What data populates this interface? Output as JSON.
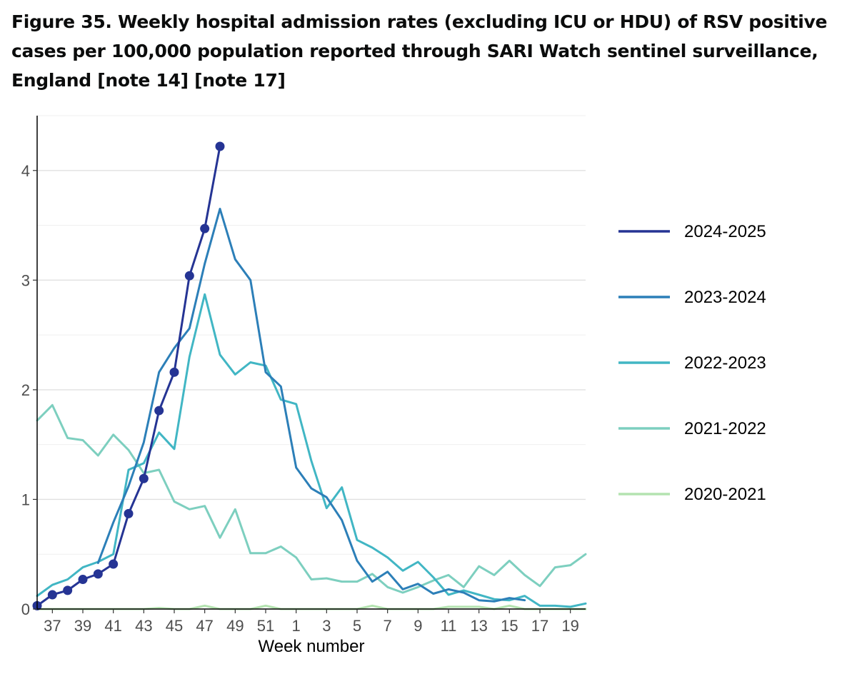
{
  "figure": {
    "title": "Figure 35. Weekly hospital admission rates (excluding ICU or HDU) of RSV positive cases per 100,000 population reported through SARI Watch sentinel surveillance, England [note 14] [note 17]"
  },
  "chart_data": {
    "type": "line",
    "xlabel": "Week number",
    "ylabel": "",
    "ylim": [
      0,
      4.5
    ],
    "yticks": [
      0,
      1,
      2,
      3,
      4
    ],
    "x_tick_labels": [
      "37",
      "39",
      "41",
      "43",
      "45",
      "47",
      "49",
      "51",
      "1",
      "3",
      "5",
      "7",
      "9",
      "11",
      "13",
      "15",
      "17",
      "19"
    ],
    "weeks": [
      36,
      37,
      38,
      39,
      40,
      41,
      42,
      43,
      44,
      45,
      46,
      47,
      48,
      49,
      50,
      51,
      52,
      1,
      2,
      3,
      4,
      5,
      6,
      7,
      8,
      9,
      10,
      11,
      12,
      13,
      14,
      15,
      16,
      17,
      18,
      19,
      20
    ],
    "grid": true,
    "legend_position": "right",
    "series": [
      {
        "name": "2020-2021",
        "color": "#b4e3b0",
        "markers": false,
        "values": [
          0.0,
          0.0,
          0.0,
          0.0,
          0.0,
          0.0,
          0.0,
          0.0,
          0.01,
          0.0,
          0.0,
          0.03,
          0.0,
          0.0,
          0.0,
          0.03,
          0.0,
          0.0,
          0.0,
          0.0,
          0.0,
          0.0,
          0.03,
          0.0,
          0.0,
          0.0,
          0.0,
          0.02,
          0.02,
          0.02,
          0.0,
          0.03,
          0.0,
          0.0,
          0.0,
          0.0,
          0.0
        ]
      },
      {
        "name": "2021-2022",
        "color": "#7dcfbf",
        "markers": false,
        "values": [
          1.72,
          1.86,
          1.56,
          1.54,
          1.4,
          1.59,
          1.45,
          1.24,
          1.27,
          0.98,
          0.91,
          0.94,
          0.65,
          0.91,
          0.51,
          0.51,
          0.57,
          0.47,
          0.27,
          0.28,
          0.25,
          0.25,
          0.32,
          0.2,
          0.15,
          0.2,
          0.26,
          0.31,
          0.2,
          0.39,
          0.31,
          0.44,
          0.31,
          0.21,
          0.38,
          0.4,
          0.5
        ]
      },
      {
        "name": "2022-2023",
        "color": "#41b6c4",
        "markers": false,
        "values": [
          0.12,
          0.22,
          0.27,
          0.38,
          0.43,
          0.5,
          1.27,
          1.33,
          1.61,
          1.46,
          2.3,
          2.87,
          2.32,
          2.14,
          2.25,
          2.22,
          1.91,
          1.87,
          1.35,
          0.92,
          1.11,
          0.63,
          0.56,
          0.47,
          0.35,
          0.43,
          0.29,
          0.13,
          0.17,
          0.13,
          0.09,
          0.08,
          0.12,
          0.03,
          0.03,
          0.02,
          0.05
        ]
      },
      {
        "name": "2023-2024",
        "color": "#2c7fb8",
        "markers": false,
        "values": [
          null,
          null,
          null,
          null,
          0.42,
          0.79,
          1.12,
          1.52,
          2.16,
          2.38,
          2.56,
          3.15,
          3.65,
          3.19,
          3.0,
          2.16,
          2.03,
          1.29,
          1.1,
          1.02,
          0.81,
          0.44,
          0.25,
          0.34,
          0.18,
          0.23,
          0.14,
          0.18,
          0.15,
          0.08,
          0.07,
          0.1,
          0.08,
          null,
          null,
          null,
          null
        ]
      },
      {
        "name": "2024-2025",
        "color": "#253494",
        "markers": true,
        "values": [
          0.03,
          0.13,
          0.17,
          0.27,
          0.32,
          0.41,
          0.87,
          1.19,
          1.81,
          2.16,
          3.04,
          3.47,
          4.22,
          null,
          null,
          null,
          null,
          null,
          null,
          null,
          null,
          null,
          null,
          null,
          null,
          null,
          null,
          null,
          null,
          null,
          null,
          null,
          null,
          null,
          null,
          null,
          null
        ]
      }
    ],
    "legend_order": [
      "2024-2025",
      "2023-2024",
      "2022-2023",
      "2021-2022",
      "2020-2021"
    ]
  }
}
